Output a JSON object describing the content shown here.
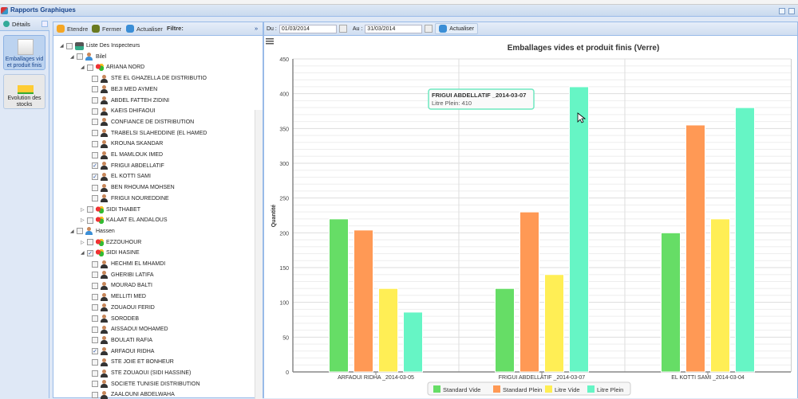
{
  "window": {
    "title": "Rapports Graphiques"
  },
  "leftnav": {
    "header": "Détails",
    "items": [
      {
        "label": "Emballages vid et produit finis",
        "selected": true
      },
      {
        "label": "Evolution des stocks",
        "selected": false
      }
    ]
  },
  "tree_toolbar": {
    "expand": "Etendre",
    "collapse": "Fermer",
    "refresh": "Actualiser",
    "filter": "Filtre:"
  },
  "tree": [
    {
      "label": "Liste Des Inspecteurs",
      "level": 0,
      "type": "root",
      "exp": "open",
      "checked": false
    },
    {
      "label": "Bilel",
      "level": 1,
      "type": "insp",
      "exp": "open",
      "checked": false
    },
    {
      "label": "ARIANA NORD",
      "level": 2,
      "type": "zone",
      "exp": "open",
      "checked": false
    },
    {
      "label": "STE EL GHAZELLA DE DISTRIBUTIO",
      "level": 3,
      "type": "user",
      "checked": false
    },
    {
      "label": "BEJI MED AYMEN",
      "level": 3,
      "type": "user",
      "checked": false
    },
    {
      "label": "ABDEL FATTEH ZIDINI",
      "level": 3,
      "type": "user",
      "checked": false
    },
    {
      "label": "KAEIS DHIFAOUI",
      "level": 3,
      "type": "user",
      "checked": false
    },
    {
      "label": "CONFIANCE DE DISTRIBUTION",
      "level": 3,
      "type": "user",
      "checked": false
    },
    {
      "label": "TRABELSI SLAHEDDINE (EL HAMED",
      "level": 3,
      "type": "user",
      "checked": false
    },
    {
      "label": "KROUNA SKANDAR",
      "level": 3,
      "type": "user",
      "checked": false
    },
    {
      "label": "EL MAMLOUK IMED",
      "level": 3,
      "type": "user",
      "checked": false
    },
    {
      "label": "FRIGUI ABDELLATIF",
      "level": 3,
      "type": "user",
      "checked": true
    },
    {
      "label": "EL KOTTI SAMI",
      "level": 3,
      "type": "user",
      "checked": true
    },
    {
      "label": "BEN RHOUMA MOHSEN",
      "level": 3,
      "type": "user",
      "checked": false
    },
    {
      "label": "FRIGUI NOUREDDINE",
      "level": 3,
      "type": "user",
      "checked": false
    },
    {
      "label": "SIDI THABET",
      "level": 2,
      "type": "zone",
      "exp": "closed",
      "checked": false
    },
    {
      "label": "KALAAT EL ANDALOUS",
      "level": 2,
      "type": "zone",
      "exp": "closed",
      "checked": false
    },
    {
      "label": "Hassen",
      "level": 1,
      "type": "insp",
      "exp": "open",
      "checked": false
    },
    {
      "label": "EZZOUHOUR",
      "level": 2,
      "type": "zone",
      "exp": "closed",
      "checked": false
    },
    {
      "label": "SIDI HASINE",
      "level": 2,
      "type": "zone",
      "exp": "open",
      "checked": true
    },
    {
      "label": "HECHMI EL MHAMDI",
      "level": 3,
      "type": "user",
      "checked": false
    },
    {
      "label": "GHERIBI LATIFA",
      "level": 3,
      "type": "user",
      "checked": false
    },
    {
      "label": "MOURAD BALTI",
      "level": 3,
      "type": "user",
      "checked": false
    },
    {
      "label": "MELLITI MED",
      "level": 3,
      "type": "user",
      "checked": false
    },
    {
      "label": "ZOUAOUI FERID",
      "level": 3,
      "type": "user",
      "checked": false
    },
    {
      "label": "SORODEB",
      "level": 3,
      "type": "user",
      "checked": false
    },
    {
      "label": "AISSAOUI MOHAMED",
      "level": 3,
      "type": "user",
      "checked": false
    },
    {
      "label": "BOULATI RAFIA",
      "level": 3,
      "type": "user",
      "checked": false
    },
    {
      "label": "ARFAOUI RIDHA",
      "level": 3,
      "type": "user",
      "checked": true
    },
    {
      "label": "STE JOIE ET BONHEUR",
      "level": 3,
      "type": "user",
      "checked": false
    },
    {
      "label": "STE ZOUAOUI (SIDI HASSINE)",
      "level": 3,
      "type": "user",
      "checked": false
    },
    {
      "label": "SOCIETE TUNISIE DISTRIBUTION",
      "level": 3,
      "type": "user",
      "checked": false
    },
    {
      "label": "ZAALOUNI ABDELWAHA",
      "level": 3,
      "type": "user",
      "checked": false
    }
  ],
  "chart_toolbar": {
    "from_label": "Du :",
    "from_value": "01/03/2014",
    "to_label": "Au :",
    "to_value": "31/03/2014",
    "refresh": "Actualiser"
  },
  "tooltip": {
    "title": "FRIGUI ABDELLATIF _2014-03-07",
    "line": "Litre Plein: 410"
  },
  "chart_data": {
    "type": "bar",
    "title": "Emballages vides et produit finis (Verre)",
    "ylabel": "Quantité",
    "xlabel": "",
    "ylim": [
      0,
      450
    ],
    "yticks": [
      0,
      50,
      100,
      150,
      200,
      250,
      300,
      350,
      400,
      450
    ],
    "categories": [
      "ARFAOUI RIDHA _2014-03-05",
      "FRIGUI ABDELLATIF _2014-03-07",
      "EL KOTTI SAMI _2014-03-04"
    ],
    "series": [
      {
        "name": "Standard Vide",
        "color": "#66dd66",
        "values": [
          220,
          120,
          200
        ]
      },
      {
        "name": "Standard Plein",
        "color": "#ff9955",
        "values": [
          204,
          230,
          355
        ]
      },
      {
        "name": "Litre Vide",
        "color": "#ffee55",
        "values": [
          120,
          140,
          220
        ]
      },
      {
        "name": "Litre Plein",
        "color": "#66f5c5",
        "values": [
          86,
          410,
          380
        ]
      }
    ],
    "legend": "bottom",
    "grid": true
  }
}
